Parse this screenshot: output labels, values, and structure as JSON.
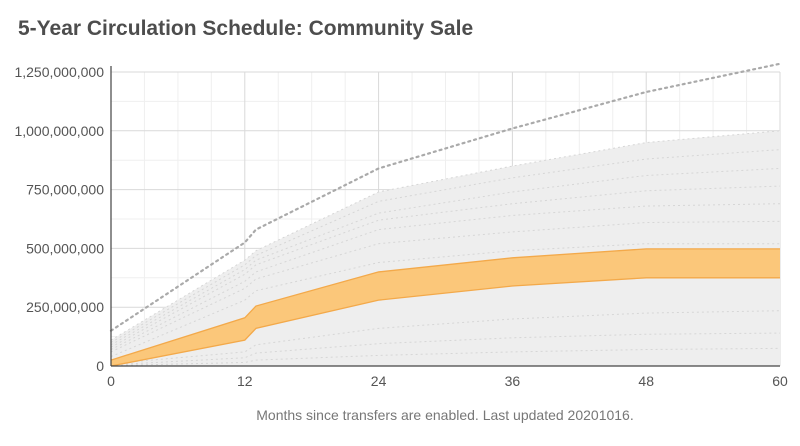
{
  "chart_data": {
    "type": "area",
    "title": "5-Year Circulation Schedule: Community Sale",
    "xlabel": "Months since transfers are enabled. Last updated 20201016.",
    "ylabel": "",
    "xlim": [
      0,
      60
    ],
    "ylim": [
      0,
      1250000000
    ],
    "x_ticks": [
      0,
      12,
      24,
      36,
      48,
      60
    ],
    "x_tick_labels": [
      "0",
      "12",
      "24",
      "36",
      "48",
      "60"
    ],
    "y_ticks": [
      0,
      250000000,
      500000000,
      750000000,
      1000000000,
      1250000000
    ],
    "y_tick_labels": [
      "0",
      "250,000,000",
      "500,000,000",
      "750,000,000",
      "1,000,000,000",
      "1,250,000,000"
    ],
    "grid": true,
    "colors": {
      "highlight_band_fill": "#fbc77a",
      "highlight_band_stroke": "#f3a94a",
      "context_band_fill": "#eeeeee",
      "dotted_lines": "#d6d6d6",
      "total_line": "#aaaaaa",
      "grid": "#e3e3e3",
      "axis": "#444444"
    },
    "series": [
      {
        "role": "total-line",
        "style": "dotted",
        "x": [
          0,
          12,
          13,
          24,
          36,
          48,
          60
        ],
        "values": [
          150000000,
          525000000,
          580000000,
          840000000,
          1010000000,
          1165000000,
          1285000000
        ]
      },
      {
        "role": "context-band-upper",
        "x": [
          0,
          12,
          13,
          24,
          36,
          48,
          60
        ],
        "values": [
          110000000,
          450000000,
          490000000,
          740000000,
          850000000,
          950000000,
          1000000000
        ]
      },
      {
        "role": "highlight-band-upper",
        "x": [
          0,
          12,
          13,
          24,
          36,
          48,
          60
        ],
        "values": [
          25000000,
          205000000,
          255000000,
          400000000,
          460000000,
          498000000,
          498000000
        ]
      },
      {
        "role": "highlight-band-lower",
        "x": [
          0,
          12,
          13,
          24,
          36,
          48,
          60
        ],
        "values": [
          0,
          110000000,
          160000000,
          280000000,
          340000000,
          375000000,
          375000000
        ]
      }
    ],
    "inner_dotted_lines": [
      {
        "x": [
          0,
          12,
          13,
          24,
          36,
          48,
          60
        ],
        "values": [
          100000000,
          430000000,
          470000000,
          700000000,
          800000000,
          880000000,
          920000000
        ]
      },
      {
        "x": [
          0,
          12,
          13,
          24,
          36,
          48,
          60
        ],
        "values": [
          90000000,
          410000000,
          450000000,
          650000000,
          740000000,
          810000000,
          840000000
        ]
      },
      {
        "x": [
          0,
          12,
          13,
          24,
          36,
          48,
          60
        ],
        "values": [
          80000000,
          390000000,
          430000000,
          620000000,
          690000000,
          745000000,
          765000000
        ]
      },
      {
        "x": [
          0,
          12,
          13,
          24,
          36,
          48,
          60
        ],
        "values": [
          70000000,
          360000000,
          400000000,
          580000000,
          640000000,
          680000000,
          690000000
        ]
      },
      {
        "x": [
          0,
          12,
          13,
          24,
          36,
          48,
          60
        ],
        "values": [
          60000000,
          330000000,
          370000000,
          520000000,
          570000000,
          610000000,
          615000000
        ]
      },
      {
        "x": [
          0,
          12,
          13,
          24,
          36,
          48,
          60
        ],
        "values": [
          40000000,
          280000000,
          320000000,
          440000000,
          490000000,
          520000000,
          520000000
        ]
      },
      {
        "x": [
          0,
          12,
          13,
          24,
          36,
          48,
          60
        ],
        "values": [
          10000000,
          60000000,
          90000000,
          160000000,
          200000000,
          225000000,
          235000000
        ]
      },
      {
        "x": [
          0,
          12,
          13,
          24,
          36,
          48,
          60
        ],
        "values": [
          5000000,
          35000000,
          55000000,
          95000000,
          120000000,
          135000000,
          140000000
        ]
      },
      {
        "x": [
          0,
          12,
          13,
          24,
          36,
          48,
          60
        ],
        "values": [
          2000000,
          15000000,
          25000000,
          45000000,
          60000000,
          70000000,
          75000000
        ]
      }
    ]
  }
}
